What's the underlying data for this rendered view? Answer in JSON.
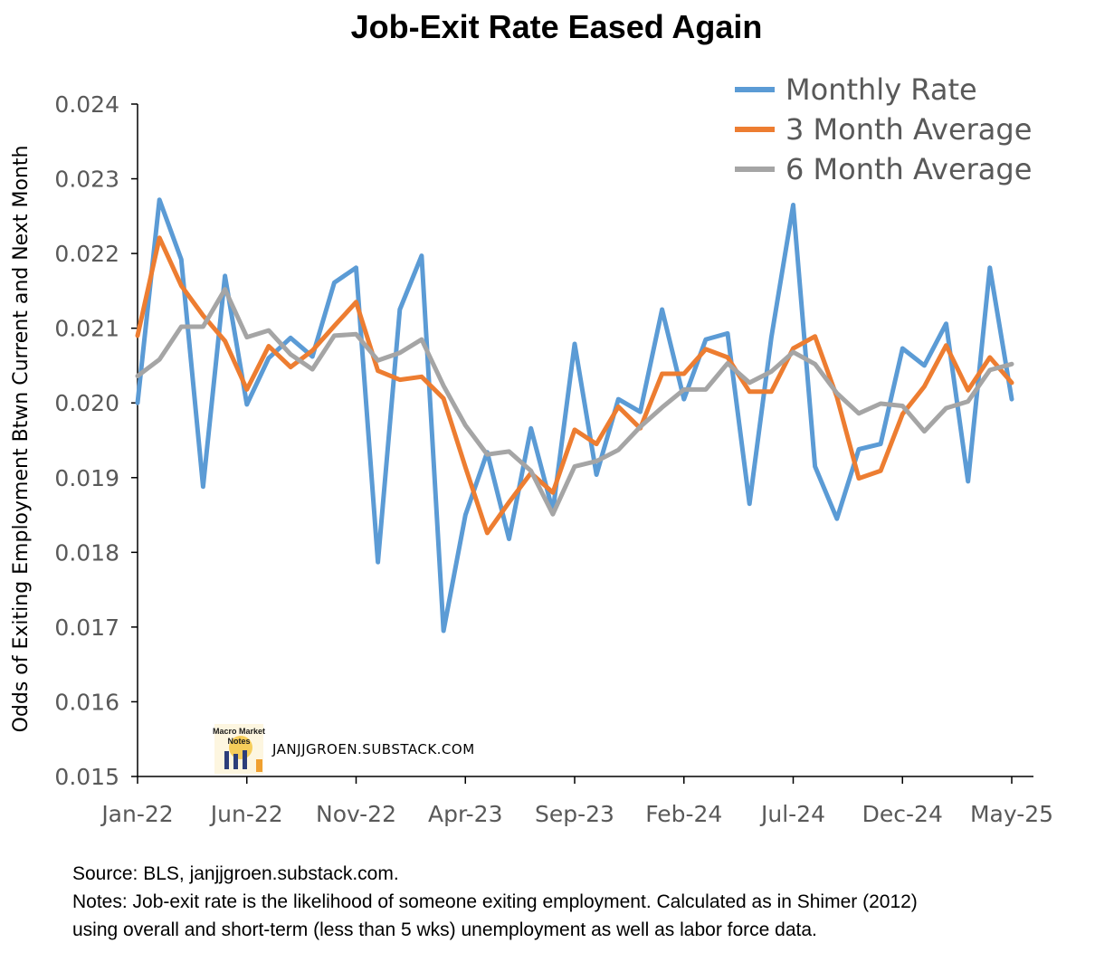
{
  "chart_data": {
    "type": "line",
    "title": "Job-Exit Rate Eased Again",
    "xlabel": "",
    "ylabel": "Odds of Exiting Employment Btwn Current and Next Month",
    "ylim": [
      0.015,
      0.024
    ],
    "yticks": [
      "0.015",
      "0.016",
      "0.017",
      "0.018",
      "0.019",
      "0.020",
      "0.021",
      "0.022",
      "0.023",
      "0.024"
    ],
    "xticks": [
      "Jan-22",
      "Jun-22",
      "Nov-22",
      "Apr-23",
      "Sep-23",
      "Feb-24",
      "Jul-24",
      "Dec-24",
      "May-25"
    ],
    "legend_position": "top-right",
    "x": [
      "Jan-22",
      "Feb-22",
      "Mar-22",
      "Apr-22",
      "May-22",
      "Jun-22",
      "Jul-22",
      "Aug-22",
      "Sep-22",
      "Oct-22",
      "Nov-22",
      "Dec-22",
      "Jan-23",
      "Feb-23",
      "Mar-23",
      "Apr-23",
      "May-23",
      "Jun-23",
      "Jul-23",
      "Aug-23",
      "Sep-23",
      "Oct-23",
      "Nov-23",
      "Dec-23",
      "Jan-24",
      "Feb-24",
      "Mar-24",
      "Apr-24",
      "May-24",
      "Jun-24",
      "Jul-24",
      "Aug-24",
      "Sep-24",
      "Oct-24",
      "Nov-24",
      "Dec-24",
      "Jan-25",
      "Feb-25",
      "Mar-25",
      "Apr-25",
      "May-25"
    ],
    "series": [
      {
        "name": "Monthly Rate",
        "color": "#5B9BD5",
        "values": [
          0.02,
          0.02272,
          0.02192,
          0.01888,
          0.0217,
          0.01998,
          0.0206,
          0.02087,
          0.02062,
          0.02161,
          0.02181,
          0.01787,
          0.02125,
          0.02197,
          0.01695,
          0.0185,
          0.01934,
          0.01818,
          0.01966,
          0.01855,
          0.02079,
          0.01904,
          0.02005,
          0.01988,
          0.02125,
          0.02005,
          0.02085,
          0.02093,
          0.01865,
          0.02088,
          0.02265,
          0.01915,
          0.01845,
          0.01938,
          0.01945,
          0.02073,
          0.0205,
          0.02106,
          0.01895,
          0.02181,
          0.02005
        ]
      },
      {
        "name": "3 Month Average",
        "color": "#ED7D31",
        "values": [
          0.0209,
          0.02221,
          0.02157,
          0.02117,
          0.02083,
          0.02018,
          0.02076,
          0.02048,
          0.0207,
          0.02103,
          0.02135,
          0.02043,
          0.02031,
          0.02035,
          0.02006,
          0.01914,
          0.01826,
          0.01867,
          0.01906,
          0.0188,
          0.01964,
          0.01945,
          0.01995,
          0.01966,
          0.02039,
          0.02039,
          0.02072,
          0.02061,
          0.02015,
          0.02015,
          0.02073,
          0.02089,
          0.02008,
          0.01899,
          0.01909,
          0.01985,
          0.02022,
          0.02077,
          0.02017,
          0.02061,
          0.02027
        ]
      },
      {
        "name": "6 Month Average",
        "color": "#A5A5A5",
        "values": [
          0.02036,
          0.02058,
          0.02102,
          0.02102,
          0.02152,
          0.02088,
          0.02097,
          0.02065,
          0.02045,
          0.0209,
          0.02092,
          0.02057,
          0.02067,
          0.02085,
          0.02023,
          0.0197,
          0.01931,
          0.01935,
          0.01909,
          0.01851,
          0.01915,
          0.01922,
          0.01937,
          0.01968,
          0.01994,
          0.02018,
          0.02018,
          0.02053,
          0.02027,
          0.02042,
          0.02068,
          0.02052,
          0.02013,
          0.01986,
          0.01999,
          0.01996,
          0.01962,
          0.01993,
          0.02002,
          0.02044,
          0.02052
        ]
      }
    ],
    "watermark": "JANJJGROEN.SUBSTACK.COM",
    "logo_text": [
      "Macro Market",
      "Notes"
    ]
  },
  "notes": {
    "source": "Source: BLS, janjjgroen.substack.com.",
    "line1": "Notes: Job-exit rate is the likelihood of someone exiting employment. Calculated as in Shimer (2012)",
    "line2": "using overall and short-term (less than 5 wks) unemployment as well as labor force data."
  }
}
